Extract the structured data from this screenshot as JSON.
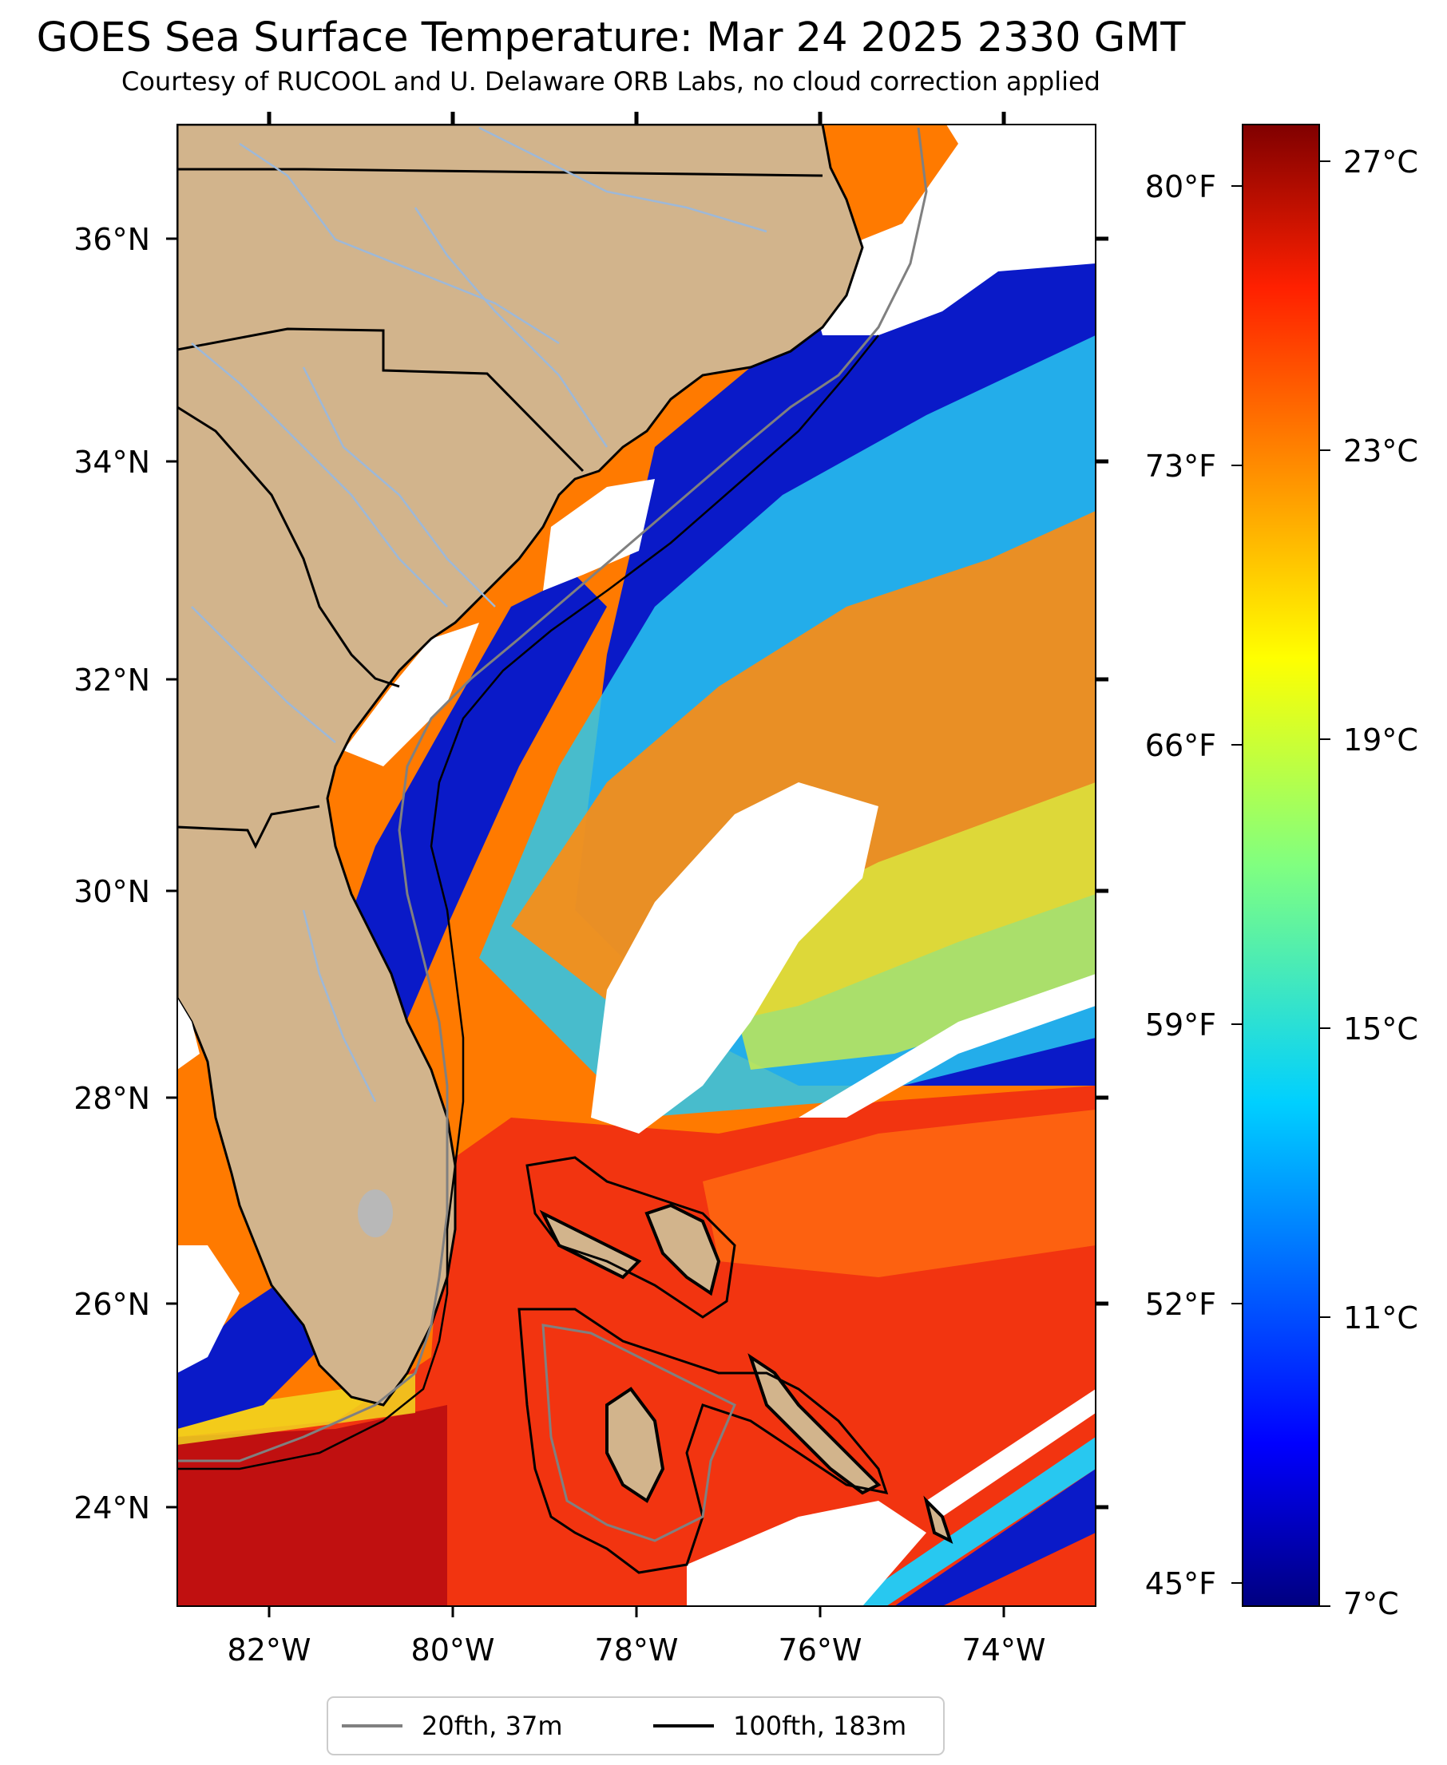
{
  "title": "GOES Sea Surface Temperature: Mar 24 2025 2330 GMT",
  "subtitle": "Courtesy of RUCOOL and U. Delaware ORB Labs, no cloud correction applied",
  "map": {
    "lon_range": [
      -83,
      -73
    ],
    "lat_range": [
      23.0,
      37.0
    ],
    "lon_ticks": [
      "82°W",
      "80°W",
      "78°W",
      "76°W",
      "74°W"
    ],
    "lat_ticks": [
      "24°N",
      "26°N",
      "28°N",
      "30°N",
      "32°N",
      "34°N",
      "36°N"
    ],
    "fahrenheit_ticks": [
      "45°F",
      "52°F",
      "59°F",
      "66°F",
      "73°F",
      "80°F"
    ],
    "colors": {
      "land": "#d2b48c",
      "cloud": "#ffffff",
      "rivers": "#9db8d8",
      "coast": "#000000"
    }
  },
  "colorbar": {
    "min_c": 7,
    "max_c": 27.5,
    "labels": [
      "7°C",
      "11°C",
      "15°C",
      "19°C",
      "23°C",
      "27°C"
    ],
    "colormap": "jet"
  },
  "legend": {
    "items": [
      {
        "label": "20fth, 37m",
        "color": "#808080"
      },
      {
        "label": "100fth, 183m",
        "color": "#000000"
      }
    ]
  }
}
